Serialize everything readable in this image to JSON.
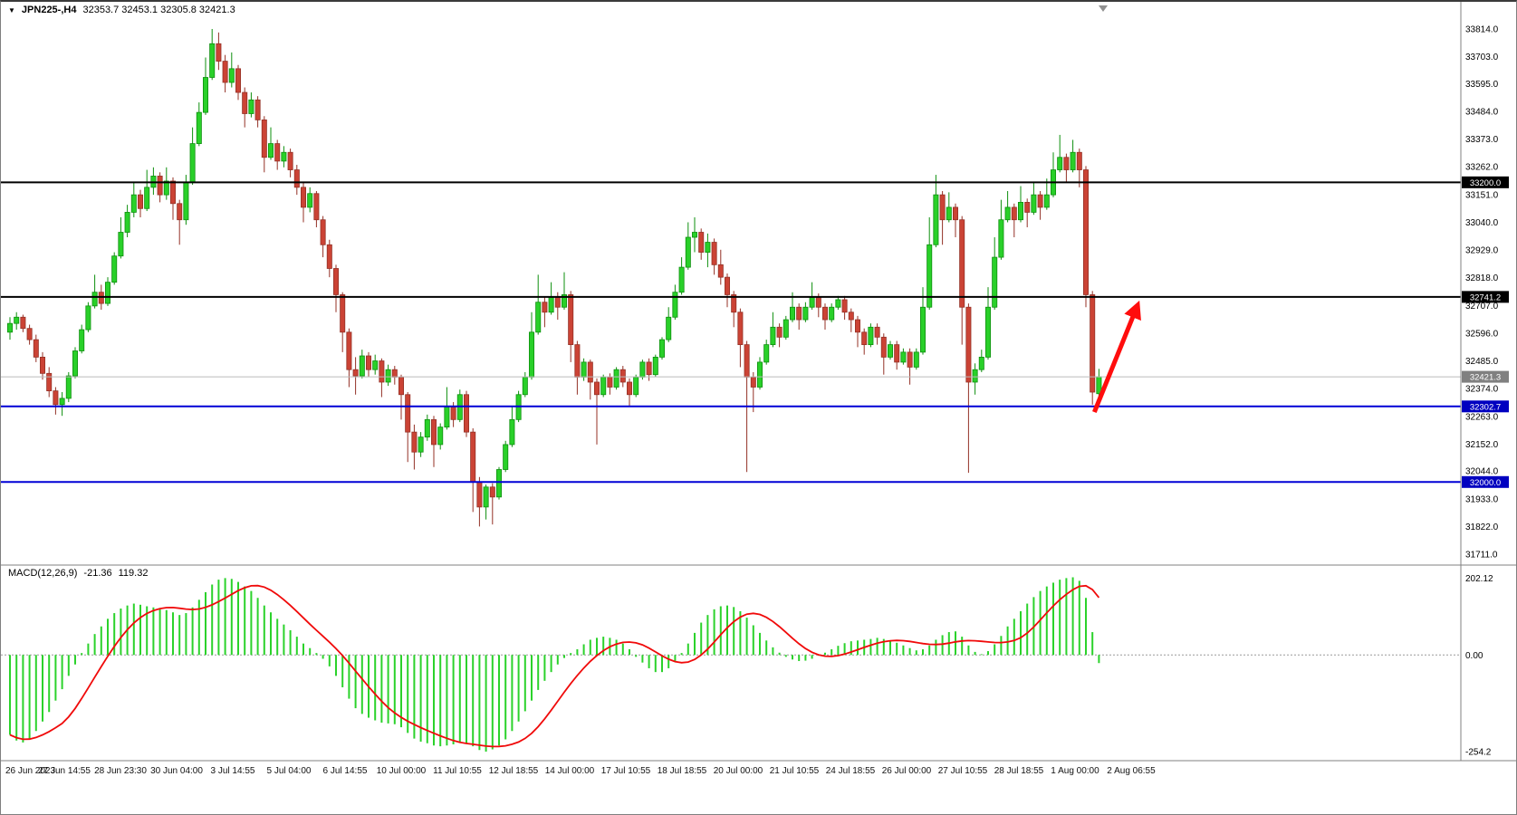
{
  "window": {
    "symbol_period": "JPN225-,H4",
    "ohlc_line": "32353.7 32453.1 32305.8 32421.3"
  },
  "icons": {
    "symbol_dropdown": "▼"
  },
  "macd_panel": {
    "label": "MACD(12,26,9)",
    "value_main": "-21.36",
    "value_signal": "119.32"
  },
  "colors": {
    "up_fill": "#29D029",
    "up_stroke": "#0E8F0E",
    "down_fill": "#CB4335",
    "down_stroke": "#943126",
    "macd_hist": "#2BD22B",
    "macd_signal": "#F00A0A",
    "arrow": "#FF0D0D",
    "axis_text": "#000000"
  },
  "chart_data": {
    "type": "candlestick",
    "symbol": "JPN225-",
    "timeframe": "H4",
    "price_range": {
      "max": 33814,
      "min": 31711
    },
    "macd_range": {
      "max": 222,
      "min": -266
    },
    "price_ticks": [
      "33814.0",
      "33703.0",
      "33595.0",
      "33484.0",
      "33373.0",
      "33262.0",
      "33151.0",
      "33040.0",
      "32929.0",
      "32818.0",
      "32707.0",
      "32596.0",
      "32485.0",
      "32374.0",
      "32263.0",
      "32152.0",
      "32044.0",
      "31933.0",
      "31822.0",
      "31711.0"
    ],
    "time_ticks": [
      "26 Jun 2023",
      "27 Jun 14:55",
      "28 Jun 23:30",
      "30 Jun 04:00",
      "3 Jul 14:55",
      "5 Jul 04:00",
      "6 Jul 14:55",
      "10 Jul 00:00",
      "11 Jul 10:55",
      "12 Jul 18:55",
      "14 Jul 00:00",
      "17 Jul 10:55",
      "18 Jul 18:55",
      "20 Jul 00:00",
      "21 Jul 10:55",
      "24 Jul 18:55",
      "26 Jul 00:00",
      "27 Jul 10:55",
      "28 Jul 18:55",
      "1 Aug 00:00",
      "2 Aug 06:55"
    ],
    "hlines": [
      {
        "label": "33200.0",
        "value": 33200.0,
        "line_color": "#000000",
        "line_width": 2,
        "badge_color": "#000000"
      },
      {
        "label": "32741.2",
        "value": 32741.2,
        "line_color": "#000000",
        "line_width": 2,
        "badge_color": "#000000"
      },
      {
        "label": "32421.3",
        "value": 32421.3,
        "line_color": "#BBBBBB",
        "line_width": 1,
        "badge_color": "#808080"
      },
      {
        "label": "32302.7",
        "value": 32302.7,
        "line_color": "#0000D6",
        "line_width": 2,
        "badge_color": "#0000C0"
      },
      {
        "label": "32000.0",
        "value": 32000.0,
        "line_color": "#0000D6",
        "line_width": 2,
        "badge_color": "#0000C0"
      }
    ],
    "macd_ticks": [
      {
        "label": "202.12",
        "value": 202.12
      },
      {
        "label": "0.00",
        "value": 0
      },
      {
        "label": "-254.2",
        "value": -254.2
      }
    ],
    "arrow": {
      "from_index": 166.3,
      "from_price": 32280,
      "to_index": 172.8,
      "to_price": 32700
    },
    "candles": [
      [
        32600,
        32660,
        32570,
        32635
      ],
      [
        32635,
        32680,
        32610,
        32660
      ],
      [
        32660,
        32670,
        32600,
        32615
      ],
      [
        32615,
        32630,
        32550,
        32570
      ],
      [
        32570,
        32590,
        32480,
        32500
      ],
      [
        32500,
        32520,
        32410,
        32435
      ],
      [
        32435,
        32460,
        32340,
        32365
      ],
      [
        32365,
        32380,
        32270,
        32310
      ],
      [
        32310,
        32360,
        32265,
        32335
      ],
      [
        32335,
        32440,
        32320,
        32425
      ],
      [
        32425,
        32540,
        32415,
        32525
      ],
      [
        32525,
        32630,
        32515,
        32610
      ],
      [
        32610,
        32720,
        32600,
        32705
      ],
      [
        32705,
        32830,
        32695,
        32760
      ],
      [
        32760,
        32790,
        32690,
        32715
      ],
      [
        32715,
        32820,
        32705,
        32800
      ],
      [
        32800,
        32920,
        32790,
        32905
      ],
      [
        32905,
        33060,
        32895,
        33000
      ],
      [
        33000,
        33110,
        32980,
        33080
      ],
      [
        33080,
        33200,
        33060,
        33150
      ],
      [
        33150,
        33170,
        33060,
        33095
      ],
      [
        33095,
        33250,
        33085,
        33180
      ],
      [
        33180,
        33260,
        33150,
        33225
      ],
      [
        33225,
        33240,
        33120,
        33150
      ],
      [
        33150,
        33260,
        33130,
        33205
      ],
      [
        33205,
        33220,
        33050,
        33115
      ],
      [
        33115,
        33130,
        32950,
        33050
      ],
      [
        33050,
        33230,
        33030,
        33200
      ],
      [
        33200,
        33420,
        33190,
        33355
      ],
      [
        33355,
        33520,
        33345,
        33480
      ],
      [
        33480,
        33700,
        33470,
        33620
      ],
      [
        33620,
        33814,
        33610,
        33755
      ],
      [
        33755,
        33800,
        33650,
        33685
      ],
      [
        33685,
        33710,
        33560,
        33600
      ],
      [
        33600,
        33720,
        33580,
        33655
      ],
      [
        33655,
        33670,
        33530,
        33560
      ],
      [
        33560,
        33580,
        33420,
        33475
      ],
      [
        33475,
        33560,
        33460,
        33530
      ],
      [
        33530,
        33545,
        33420,
        33450
      ],
      [
        33450,
        33465,
        33240,
        33300
      ],
      [
        33300,
        33420,
        33290,
        33355
      ],
      [
        33355,
        33370,
        33250,
        33285
      ],
      [
        33285,
        33345,
        33260,
        33320
      ],
      [
        33320,
        33335,
        33220,
        33250
      ],
      [
        33250,
        33270,
        33150,
        33180
      ],
      [
        33180,
        33200,
        33040,
        33100
      ],
      [
        33100,
        33180,
        33080,
        33155
      ],
      [
        33155,
        33165,
        33020,
        33050
      ],
      [
        33050,
        33065,
        32900,
        32950
      ],
      [
        32950,
        32970,
        32820,
        32855
      ],
      [
        32855,
        32870,
        32680,
        32750
      ],
      [
        32750,
        32760,
        32520,
        32600
      ],
      [
        32600,
        32615,
        32380,
        32450
      ],
      [
        32450,
        32500,
        32350,
        32425
      ],
      [
        32425,
        32530,
        32415,
        32505
      ],
      [
        32505,
        32520,
        32420,
        32450
      ],
      [
        32450,
        32510,
        32430,
        32485
      ],
      [
        32485,
        32495,
        32340,
        32400
      ],
      [
        32400,
        32470,
        32385,
        32450
      ],
      [
        32450,
        32465,
        32390,
        32420
      ],
      [
        32420,
        32430,
        32250,
        32350
      ],
      [
        32350,
        32360,
        32080,
        32200
      ],
      [
        32200,
        32230,
        32050,
        32120
      ],
      [
        32120,
        32200,
        32100,
        32180
      ],
      [
        32180,
        32270,
        32165,
        32250
      ],
      [
        32250,
        32265,
        32060,
        32150
      ],
      [
        32150,
        32235,
        32130,
        32220
      ],
      [
        32220,
        32380,
        32210,
        32300
      ],
      [
        32300,
        32320,
        32220,
        32250
      ],
      [
        32250,
        32370,
        32240,
        32350
      ],
      [
        32350,
        32365,
        32180,
        32200
      ],
      [
        32200,
        32215,
        31880,
        32000
      ],
      [
        32000,
        32020,
        31822,
        31900
      ],
      [
        31900,
        31990,
        31850,
        31980
      ],
      [
        31980,
        31995,
        31830,
        31940
      ],
      [
        31940,
        32060,
        31930,
        32050
      ],
      [
        32050,
        32165,
        32040,
        32150
      ],
      [
        32150,
        32300,
        32140,
        32250
      ],
      [
        32250,
        32365,
        32240,
        32350
      ],
      [
        32350,
        32440,
        32340,
        32420
      ],
      [
        32420,
        32680,
        32410,
        32600
      ],
      [
        32600,
        32830,
        32590,
        32720
      ],
      [
        32720,
        32740,
        32620,
        32680
      ],
      [
        32680,
        32800,
        32670,
        32740
      ],
      [
        32740,
        32760,
        32650,
        32700
      ],
      [
        32700,
        32840,
        32690,
        32750
      ],
      [
        32750,
        32765,
        32480,
        32550
      ],
      [
        32550,
        32565,
        32350,
        32420
      ],
      [
        32420,
        32495,
        32405,
        32480
      ],
      [
        32480,
        32490,
        32330,
        32400
      ],
      [
        32400,
        32415,
        32150,
        32350
      ],
      [
        32350,
        32430,
        32340,
        32420
      ],
      [
        32420,
        32435,
        32350,
        32380
      ],
      [
        32380,
        32460,
        32370,
        32450
      ],
      [
        32450,
        32465,
        32380,
        32400
      ],
      [
        32400,
        32415,
        32300,
        32350
      ],
      [
        32350,
        32430,
        32340,
        32420
      ],
      [
        32420,
        32490,
        32410,
        32480
      ],
      [
        32480,
        32495,
        32405,
        32430
      ],
      [
        32430,
        32510,
        32420,
        32500
      ],
      [
        32500,
        32580,
        32490,
        32570
      ],
      [
        32570,
        32700,
        32560,
        32660
      ],
      [
        32660,
        32790,
        32650,
        32760
      ],
      [
        32760,
        32900,
        32750,
        32860
      ],
      [
        32860,
        33040,
        32850,
        32980
      ],
      [
        32980,
        33060,
        32920,
        33000
      ],
      [
        33000,
        33015,
        32890,
        32920
      ],
      [
        32920,
        32995,
        32860,
        32960
      ],
      [
        32960,
        32975,
        32830,
        32870
      ],
      [
        32870,
        32930,
        32790,
        32820
      ],
      [
        32820,
        32835,
        32700,
        32750
      ],
      [
        32750,
        32765,
        32620,
        32680
      ],
      [
        32680,
        32695,
        32460,
        32550
      ],
      [
        32550,
        32565,
        32040,
        32420
      ],
      [
        32420,
        32440,
        32280,
        32380
      ],
      [
        32380,
        32500,
        32370,
        32480
      ],
      [
        32480,
        32570,
        32470,
        32550
      ],
      [
        32550,
        32680,
        32540,
        32620
      ],
      [
        32620,
        32635,
        32540,
        32580
      ],
      [
        32580,
        32665,
        32570,
        32650
      ],
      [
        32650,
        32760,
        32640,
        32700
      ],
      [
        32700,
        32715,
        32610,
        32650
      ],
      [
        32650,
        32720,
        32640,
        32700
      ],
      [
        32700,
        32800,
        32690,
        32740
      ],
      [
        32740,
        32755,
        32660,
        32700
      ],
      [
        32700,
        32715,
        32610,
        32650
      ],
      [
        32650,
        32715,
        32640,
        32700
      ],
      [
        32700,
        32745,
        32690,
        32730
      ],
      [
        32730,
        32745,
        32650,
        32680
      ],
      [
        32680,
        32695,
        32600,
        32650
      ],
      [
        32650,
        32665,
        32540,
        32600
      ],
      [
        32600,
        32615,
        32510,
        32550
      ],
      [
        32550,
        32635,
        32540,
        32620
      ],
      [
        32620,
        32635,
        32550,
        32580
      ],
      [
        32580,
        32595,
        32430,
        32500
      ],
      [
        32500,
        32565,
        32490,
        32550
      ],
      [
        32550,
        32565,
        32450,
        32480
      ],
      [
        32480,
        32535,
        32470,
        32520
      ],
      [
        32520,
        32535,
        32390,
        32460
      ],
      [
        32460,
        32535,
        32450,
        32520
      ],
      [
        32520,
        32780,
        32510,
        32700
      ],
      [
        32700,
        33060,
        32690,
        32950
      ],
      [
        32950,
        33230,
        32940,
        33150
      ],
      [
        33150,
        33165,
        32950,
        33050
      ],
      [
        33050,
        33160,
        33040,
        33100
      ],
      [
        33100,
        33115,
        32980,
        33050
      ],
      [
        33050,
        33065,
        32550,
        32700
      ],
      [
        32700,
        32715,
        32037,
        32400
      ],
      [
        32400,
        32475,
        32350,
        32450
      ],
      [
        32450,
        32530,
        32440,
        32500
      ],
      [
        32500,
        32780,
        32490,
        32700
      ],
      [
        32700,
        32980,
        32690,
        32900
      ],
      [
        32900,
        33130,
        32890,
        33050
      ],
      [
        33050,
        33165,
        33040,
        33100
      ],
      [
        33100,
        33115,
        32980,
        33050
      ],
      [
        33050,
        33185,
        33040,
        33120
      ],
      [
        33120,
        33135,
        33020,
        33080
      ],
      [
        33080,
        33200,
        33070,
        33150
      ],
      [
        33150,
        33165,
        33050,
        33100
      ],
      [
        33100,
        33215,
        33090,
        33150
      ],
      [
        33150,
        33320,
        33140,
        33250
      ],
      [
        33250,
        33390,
        33240,
        33300
      ],
      [
        33300,
        33315,
        33200,
        33250
      ],
      [
        33250,
        33370,
        33240,
        33320
      ],
      [
        33320,
        33335,
        33180,
        33250
      ],
      [
        33250,
        33265,
        32700,
        32750
      ],
      [
        32750,
        32765,
        32310,
        32360
      ],
      [
        32353.7,
        32453.1,
        32305.8,
        32421.3
      ]
    ],
    "macd_hist": [
      -210,
      -225,
      -230,
      -220,
      -200,
      -175,
      -150,
      -120,
      -90,
      -55,
      -25,
      5,
      30,
      55,
      75,
      95,
      110,
      122,
      130,
      135,
      132,
      128,
      125,
      120,
      118,
      112,
      105,
      110,
      125,
      145,
      165,
      185,
      198,
      202,
      200,
      192,
      180,
      168,
      150,
      130,
      112,
      95,
      80,
      65,
      48,
      30,
      18,
      5,
      -10,
      -30,
      -55,
      -85,
      -115,
      -140,
      -155,
      -165,
      -172,
      -178,
      -180,
      -182,
      -190,
      -205,
      -220,
      -228,
      -232,
      -238,
      -240,
      -238,
      -235,
      -230,
      -232,
      -240,
      -250,
      -254,
      -248,
      -238,
      -222,
      -200,
      -175,
      -148,
      -120,
      -92,
      -68,
      -45,
      -25,
      -8,
      5,
      15,
      28,
      40,
      45,
      48,
      45,
      40,
      30,
      15,
      -5,
      -20,
      -35,
      -45,
      -45,
      -35,
      -18,
      5,
      30,
      58,
      85,
      105,
      120,
      128,
      130,
      126,
      115,
      98,
      78,
      58,
      38,
      20,
      6,
      -5,
      -12,
      -16,
      -15,
      -10,
      -2,
      6,
      15,
      24,
      31,
      36,
      38,
      40,
      42,
      45,
      42,
      38,
      32,
      25,
      18,
      12,
      15,
      25,
      40,
      52,
      60,
      62,
      48,
      25,
      8,
      2,
      10,
      28,
      50,
      75,
      95,
      115,
      135,
      152,
      168,
      180,
      190,
      198,
      202,
      204,
      195,
      150,
      60,
      -21.36
    ]
  }
}
